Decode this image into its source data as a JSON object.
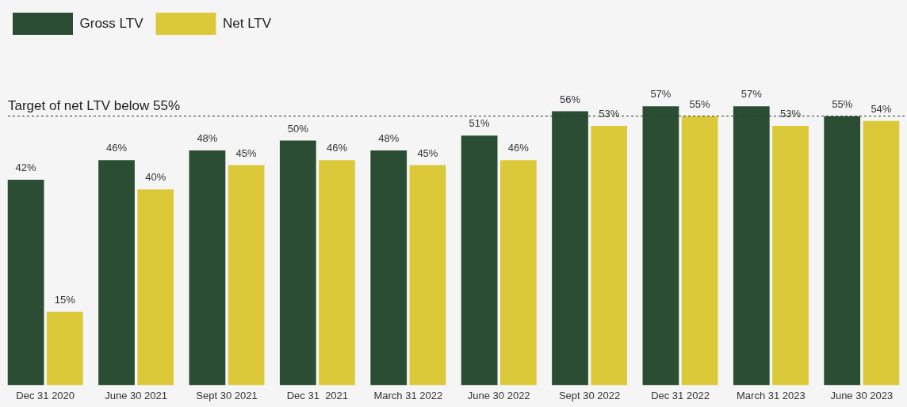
{
  "chart_data": {
    "type": "bar",
    "categories": [
      "Dec 31 2020",
      "June 30 2021",
      "Sept 30 2021",
      "Dec 31  2021",
      "March 31 2022",
      "June 30 2022",
      "Sept 30 2022",
      "Dec 31 2022",
      "March 31 2023",
      "June 30 2023"
    ],
    "series": [
      {
        "name": "Gross LTV",
        "color": "#2a4d33",
        "values": [
          42,
          46,
          48,
          50,
          48,
          51,
          56,
          57,
          57,
          55
        ],
        "value_labels": [
          "42%",
          "46%",
          "48%",
          "50%",
          "48%",
          "51%",
          "56%",
          "57%",
          "57%",
          "55%"
        ]
      },
      {
        "name": "Net LTV",
        "color": "#dcc93a",
        "values": [
          15,
          40,
          45,
          46,
          45,
          46,
          53,
          55,
          53,
          54
        ],
        "value_labels": [
          "15%",
          "40%",
          "45%",
          "46%",
          "45%",
          "46%",
          "53%",
          "55%",
          "53%",
          "54%"
        ]
      }
    ],
    "ref_lines": [
      {
        "axis": "y",
        "value": 55,
        "label": "Target of net LTV below 55%",
        "line_style": "dashed",
        "color": "#333333"
      }
    ],
    "legend": "top left",
    "grid": false,
    "tick_labels": "x"
  }
}
